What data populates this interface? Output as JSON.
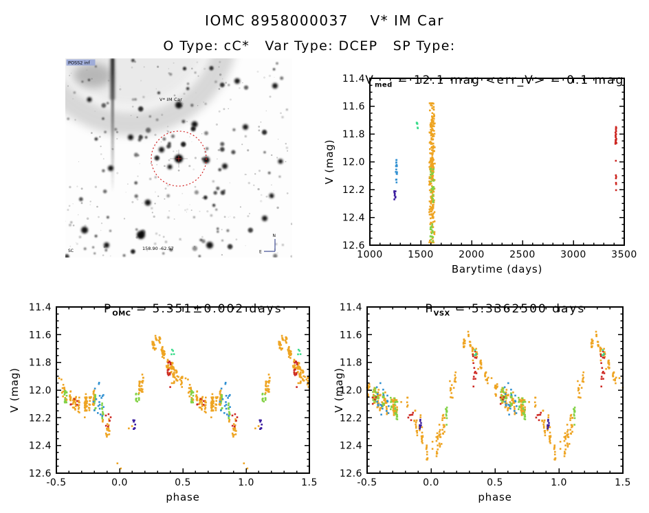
{
  "header": {
    "title_line1": "IOMC 8958000037    V* IM Car",
    "title_line2": "O Type: cC*   Var Type: DCEP   SP Type:"
  },
  "finder": {
    "survey_badge": "POSS2 inf",
    "target_label": "V* IM Car",
    "coord_label": "158.90 -62.57",
    "corner_label": "SC",
    "compass_n": "N",
    "compass_e": "E"
  },
  "palette": {
    "orange": "#EEA422",
    "green": "#82D246",
    "teal": "#3CDC8C",
    "blue": "#3291D2",
    "red": "#CD2823",
    "purple": "#3C1EA0",
    "marker_red": "#D42222",
    "annot_blue": "#223A99"
  },
  "chart_data": [
    {
      "id": "barytime",
      "type": "scatter",
      "title": {
        "pre": "V",
        "sub": "med",
        "rest": " = 12.1 mag <err_V> = 0.1 mag"
      },
      "xlabel": "Barytime (days)",
      "ylabel": "V (mag)",
      "xlim": [
        1000,
        3500
      ],
      "ylim": [
        11.4,
        12.6
      ],
      "y_inverted": true,
      "xticks": [
        1000,
        1500,
        2000,
        2500,
        3000,
        3500
      ],
      "xtick_labels": [
        "1000",
        "1500",
        "2000",
        "2500",
        "3000",
        "3500"
      ],
      "yticks": [
        11.4,
        11.6,
        11.8,
        12.0,
        12.2,
        12.4,
        12.6
      ],
      "ytick_labels": [
        "11.4",
        "11.6",
        "11.8",
        "12.0",
        "12.2",
        "12.4",
        "12.6"
      ],
      "x_minor": 100,
      "y_minor": 0.05,
      "clusters": [
        {
          "color": "orange",
          "x": [
            1580,
            1640
          ],
          "y": [
            11.58,
            12.58
          ],
          "n": 300,
          "dist": "gauss",
          "center": 12.08,
          "sd": 0.26
        },
        {
          "color": "green",
          "x": [
            1594,
            1630
          ],
          "y": [
            12.04,
            12.3
          ],
          "n": 26
        },
        {
          "color": "green",
          "x": [
            1594,
            1625
          ],
          "y": [
            12.42,
            12.59
          ],
          "n": 16
        },
        {
          "color": "blue",
          "x": [
            1254,
            1268
          ],
          "y": [
            11.95,
            12.09
          ],
          "n": 16
        },
        {
          "color": "blue",
          "x": [
            1256,
            1265
          ],
          "y": [
            12.11,
            12.16
          ],
          "n": 3
        },
        {
          "color": "purple",
          "x": [
            1240,
            1253
          ],
          "y": [
            12.21,
            12.28
          ],
          "n": 9
        },
        {
          "color": "teal",
          "x": [
            1458,
            1472
          ],
          "y": [
            11.71,
            11.77
          ],
          "n": 6
        },
        {
          "color": "red",
          "x": [
            3413,
            3424
          ],
          "y": [
            11.75,
            11.89
          ],
          "n": 20
        },
        {
          "color": "red",
          "x": [
            3415,
            3422
          ],
          "y": [
            11.96,
            12.26
          ],
          "n": 7
        }
      ]
    },
    {
      "id": "omc_phase",
      "type": "scatter",
      "title": {
        "pre": "P",
        "sub": "OMC",
        "rest": " = 5.351±0.002 days"
      },
      "xlabel": "phase",
      "ylabel": "V (mag)",
      "xlim": [
        -0.5,
        1.5
      ],
      "ylim": [
        11.4,
        12.6
      ],
      "y_inverted": true,
      "xticks": [
        -0.5,
        0.0,
        0.5,
        1.0,
        1.5
      ],
      "xtick_labels": [
        "-0.5",
        "0.0",
        "0.5",
        "1.0",
        "1.5"
      ],
      "yticks": [
        11.4,
        11.6,
        11.8,
        12.0,
        12.2,
        12.4,
        12.6
      ],
      "ytick_labels": [
        "11.4",
        "11.6",
        "11.8",
        "12.0",
        "12.2",
        "12.4",
        "12.6"
      ],
      "x_minor": 0.1,
      "y_minor": 0.05,
      "fold": true,
      "strips": 42,
      "curve": [
        [
          0.0,
          12.5
        ],
        [
          0.03,
          12.43
        ],
        [
          0.06,
          12.36
        ],
        [
          0.09,
          12.28
        ],
        [
          0.12,
          12.17
        ],
        [
          0.15,
          12.04
        ],
        [
          0.18,
          11.94
        ],
        [
          0.21,
          11.85
        ],
        [
          0.24,
          11.74
        ],
        [
          0.27,
          11.65
        ],
        [
          0.3,
          11.62
        ],
        [
          0.33,
          11.69
        ],
        [
          0.36,
          11.77
        ],
        [
          0.4,
          11.84
        ],
        [
          0.45,
          11.91
        ],
        [
          0.5,
          11.97
        ],
        [
          0.55,
          12.02
        ],
        [
          0.6,
          12.06
        ],
        [
          0.65,
          12.09
        ],
        [
          0.7,
          12.12
        ],
        [
          0.75,
          12.11
        ],
        [
          0.8,
          12.05
        ],
        [
          0.85,
          12.14
        ],
        [
          0.9,
          12.25
        ],
        [
          0.93,
          12.33
        ],
        [
          0.96,
          12.43
        ],
        [
          1.0,
          12.5
        ]
      ],
      "clusters": [
        {
          "color": "red",
          "p": [
            0.375,
            0.405
          ],
          "m": [
            11.78,
            11.9
          ],
          "n": 13
        },
        {
          "color": "red",
          "p": [
            0.39,
            0.4
          ],
          "m": [
            11.97,
            11.99
          ],
          "n": 1
        },
        {
          "color": "red",
          "p": [
            0.6,
            0.665
          ],
          "m": [
            12.04,
            12.12
          ],
          "n": 5
        },
        {
          "color": "red",
          "p": [
            0.89,
            0.93
          ],
          "m": [
            12.16,
            12.27
          ],
          "n": 6
        },
        {
          "color": "teal",
          "p": [
            0.405,
            0.43
          ],
          "m": [
            11.7,
            11.76
          ],
          "n": 4
        },
        {
          "color": "blue",
          "p": [
            0.79,
            0.875
          ],
          "m": [
            11.94,
            12.19
          ],
          "n": 18
        },
        {
          "color": "purple",
          "p": [
            0.105,
            0.125
          ],
          "m": [
            12.21,
            12.29
          ],
          "n": 8
        }
      ]
    },
    {
      "id": "vsx_phase",
      "type": "scatter",
      "title": {
        "pre": "P",
        "sub": "VSX",
        "rest": " = 5.3362500 days"
      },
      "xlabel": "phase",
      "ylabel": "V (mag)",
      "xlim": [
        -0.5,
        1.5
      ],
      "ylim": [
        11.4,
        12.6
      ],
      "y_inverted": true,
      "xticks": [
        -0.5,
        0.0,
        0.5,
        1.0,
        1.5
      ],
      "xtick_labels": [
        "-0.5",
        "0.0",
        "0.5",
        "1.0",
        "1.5"
      ],
      "yticks": [
        11.4,
        11.6,
        11.8,
        12.0,
        12.2,
        12.4,
        12.6
      ],
      "ytick_labels": [
        "11.4",
        "11.6",
        "11.8",
        "12.0",
        "12.2",
        "12.4",
        "12.6"
      ],
      "x_minor": 0.1,
      "y_minor": 0.05,
      "fold": true,
      "strips": 42,
      "curve": [
        [
          0.0,
          12.5
        ],
        [
          0.03,
          12.43
        ],
        [
          0.06,
          12.36
        ],
        [
          0.09,
          12.28
        ],
        [
          0.12,
          12.17
        ],
        [
          0.15,
          12.04
        ],
        [
          0.18,
          11.94
        ],
        [
          0.21,
          11.85
        ],
        [
          0.24,
          11.74
        ],
        [
          0.27,
          11.65
        ],
        [
          0.3,
          11.62
        ],
        [
          0.33,
          11.69
        ],
        [
          0.36,
          11.77
        ],
        [
          0.4,
          11.84
        ],
        [
          0.45,
          11.91
        ],
        [
          0.5,
          11.97
        ],
        [
          0.55,
          12.02
        ],
        [
          0.6,
          12.06
        ],
        [
          0.65,
          12.09
        ],
        [
          0.7,
          12.12
        ],
        [
          0.75,
          12.11
        ],
        [
          0.8,
          12.05
        ],
        [
          0.85,
          12.14
        ],
        [
          0.9,
          12.25
        ],
        [
          0.93,
          12.33
        ],
        [
          0.96,
          12.43
        ],
        [
          1.0,
          12.5
        ]
      ],
      "clusters": [
        {
          "color": "red",
          "p": [
            0.325,
            0.355
          ],
          "m": [
            11.72,
            11.92
          ],
          "n": 15
        },
        {
          "color": "red",
          "p": [
            0.325,
            0.34
          ],
          "m": [
            11.97,
            11.99
          ],
          "n": 1
        },
        {
          "color": "red",
          "p": [
            0.54,
            0.575
          ],
          "m": [
            12.04,
            12.1
          ],
          "n": 4
        },
        {
          "color": "red",
          "p": [
            0.815,
            0.86
          ],
          "m": [
            12.16,
            12.25
          ],
          "n": 6
        },
        {
          "color": "teal",
          "p": [
            0.335,
            0.355
          ],
          "m": [
            11.71,
            11.75
          ],
          "n": 4
        },
        {
          "color": "blue",
          "p": [
            0.575,
            0.67
          ],
          "m": [
            11.94,
            12.18
          ],
          "n": 18
        },
        {
          "color": "purple",
          "p": [
            0.91,
            0.925
          ],
          "m": [
            12.21,
            12.28
          ],
          "n": 8
        }
      ]
    }
  ]
}
